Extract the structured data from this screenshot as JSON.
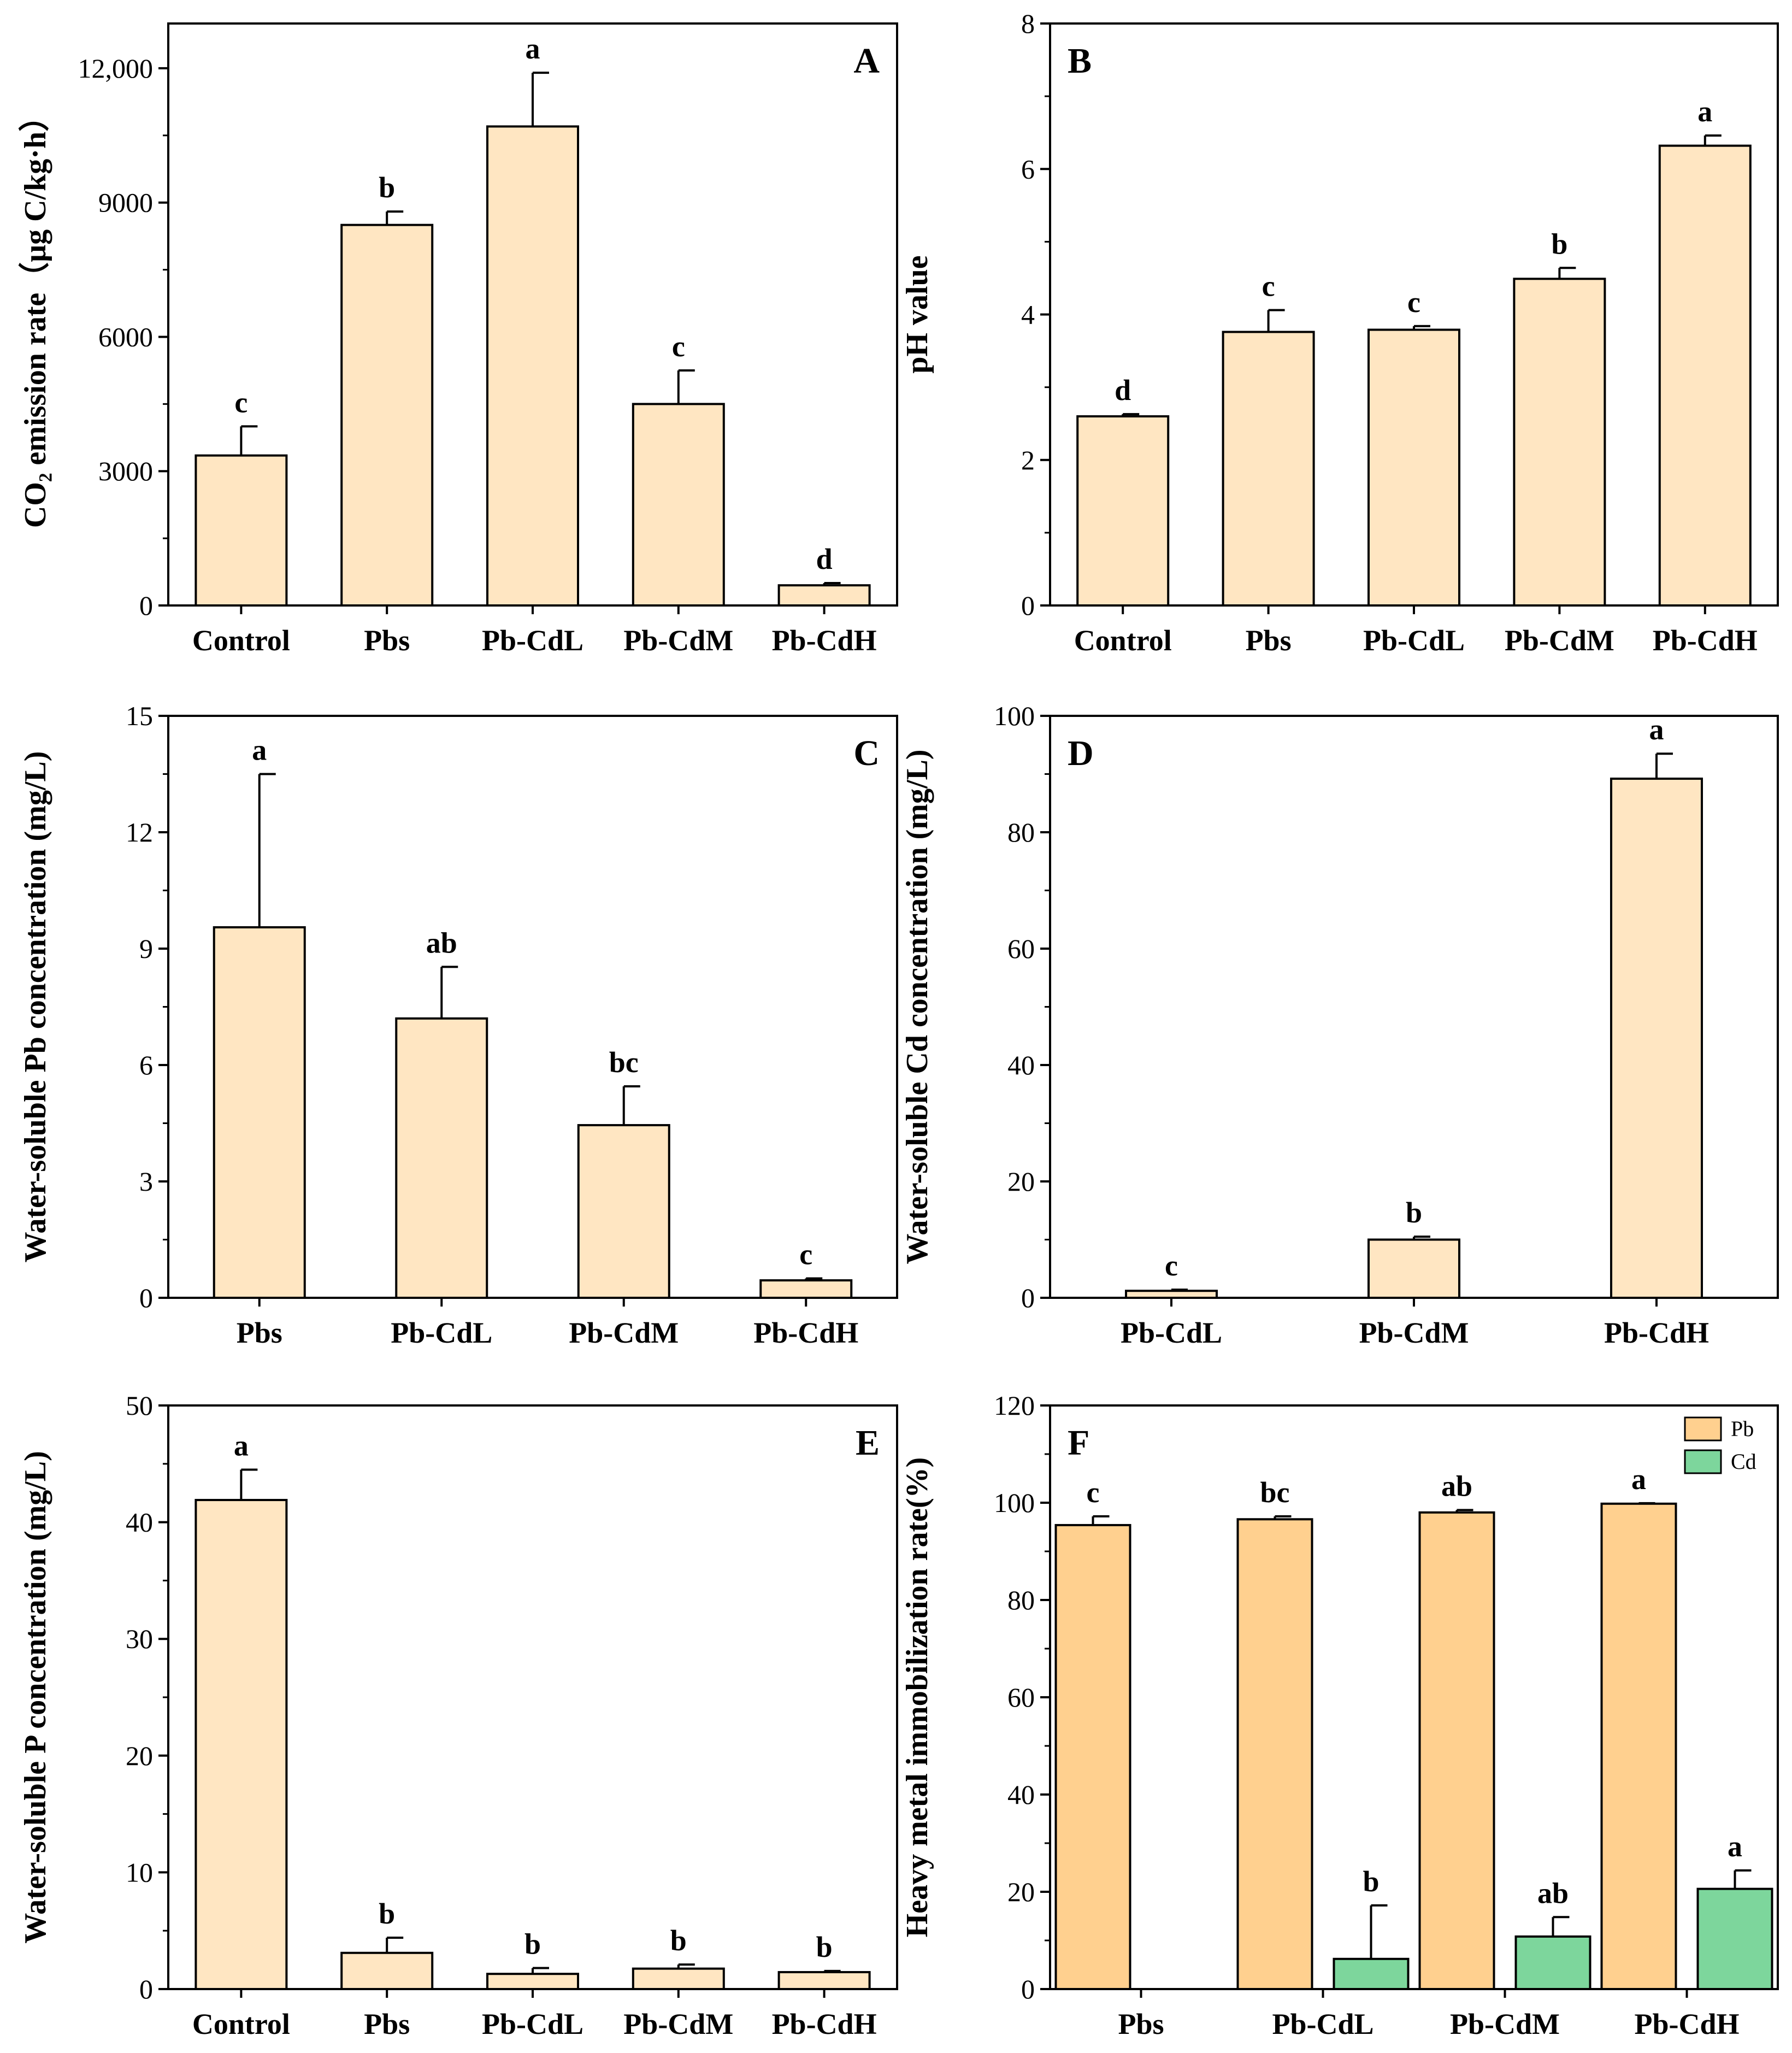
{
  "colors": {
    "bar_light": "#FFE6C2",
    "bar_pb": "#FFD08F",
    "bar_cd": "#7DD69C",
    "axis": "#000000"
  },
  "chart_data": [
    {
      "id": "A",
      "type": "bar",
      "panel_label": "A",
      "ylabel": "CO₂ emission rate（μg C/kg·h）",
      "categories": [
        "Control",
        "Pbs",
        "Pb-CdL",
        "Pb-CdM",
        "Pb-CdH"
      ],
      "ylim": [
        0,
        13000
      ],
      "yticks": [
        0,
        3000,
        6000,
        9000,
        12000
      ],
      "ytick_labels": [
        "0",
        "3000",
        "6000",
        "9000",
        "12,000"
      ],
      "series": [
        {
          "name": "",
          "color": "#FFE6C2",
          "values": [
            3350,
            8500,
            10700,
            4500,
            450
          ],
          "errors": [
            650,
            300,
            1200,
            750,
            50
          ],
          "sig": [
            "c",
            "b",
            "a",
            "c",
            "d"
          ]
        }
      ]
    },
    {
      "id": "B",
      "type": "bar",
      "panel_label": "B",
      "ylabel": "pH value",
      "categories": [
        "Control",
        "Pbs",
        "Pb-CdL",
        "Pb-CdM",
        "Pb-CdH"
      ],
      "ylim": [
        0,
        8
      ],
      "yticks": [
        0,
        2,
        4,
        6,
        8
      ],
      "ytick_labels": [
        "0",
        "2",
        "4",
        "6",
        "8"
      ],
      "series": [
        {
          "name": "",
          "color": "#FFE6C2",
          "values": [
            2.6,
            3.76,
            3.79,
            4.49,
            6.32
          ],
          "errors": [
            0.03,
            0.3,
            0.05,
            0.15,
            0.14
          ],
          "sig": [
            "d",
            "c",
            "c",
            "b",
            "a"
          ]
        }
      ]
    },
    {
      "id": "C",
      "type": "bar",
      "panel_label": "C",
      "ylabel": "Water-soluble Pb concentration (mg/L)",
      "categories": [
        "Pbs",
        "Pb-CdL",
        "Pb-CdM",
        "Pb-CdH"
      ],
      "ylim": [
        0,
        15
      ],
      "yticks": [
        0,
        3,
        6,
        9,
        12,
        15
      ],
      "ytick_labels": [
        "0",
        "3",
        "6",
        "9",
        "12",
        "15"
      ],
      "series": [
        {
          "name": "",
          "color": "#FFE6C2",
          "values": [
            9.55,
            7.2,
            4.45,
            0.45
          ],
          "errors": [
            3.95,
            1.33,
            1.0,
            0.05
          ],
          "sig": [
            "a",
            "ab",
            "bc",
            "c"
          ]
        }
      ]
    },
    {
      "id": "D",
      "type": "bar",
      "panel_label": "D",
      "ylabel": "Water-soluble Cd concentration (mg/L)",
      "categories": [
        "Pb-CdL",
        "Pb-CdM",
        "Pb-CdH"
      ],
      "ylim": [
        0,
        100
      ],
      "yticks": [
        0,
        20,
        40,
        60,
        80,
        100
      ],
      "ytick_labels": [
        "0",
        "20",
        "40",
        "60",
        "80",
        "100"
      ],
      "series": [
        {
          "name": "",
          "color": "#FFE6C2",
          "values": [
            1.2,
            10.0,
            89.2
          ],
          "errors": [
            0.2,
            0.5,
            4.3
          ],
          "sig": [
            "c",
            "b",
            "a"
          ]
        }
      ]
    },
    {
      "id": "E",
      "type": "bar",
      "panel_label": "E",
      "ylabel": "Water-soluble P concentration (mg/L)",
      "categories": [
        "Control",
        "Pbs",
        "Pb-CdL",
        "Pb-CdM",
        "Pb-CdH"
      ],
      "ylim": [
        0,
        50
      ],
      "yticks": [
        0,
        10,
        20,
        30,
        40,
        50
      ],
      "ytick_labels": [
        "0",
        "10",
        "20",
        "30",
        "40",
        "50"
      ],
      "series": [
        {
          "name": "",
          "color": "#FFE6C2",
          "values": [
            41.9,
            3.1,
            1.3,
            1.75,
            1.45
          ],
          "errors": [
            2.6,
            1.3,
            0.5,
            0.35,
            0.1
          ],
          "sig": [
            "a",
            "b",
            "b",
            "b",
            "b"
          ]
        }
      ]
    },
    {
      "id": "F",
      "type": "bar",
      "panel_label": "F",
      "ylabel": "Heavy metal immobilization rate(%)",
      "categories": [
        "Pbs",
        "Pb-CdL",
        "Pb-CdM",
        "Pb-CdH"
      ],
      "ylim": [
        0,
        120
      ],
      "yticks": [
        0,
        20,
        40,
        60,
        80,
        100,
        120
      ],
      "ytick_labels": [
        "0",
        "20",
        "40",
        "60",
        "80",
        "100",
        "120"
      ],
      "legend_position": "top-right",
      "series": [
        {
          "name": "Pb",
          "color": "#FFD08F",
          "values": [
            95.4,
            96.6,
            98.0,
            99.8
          ],
          "errors": [
            1.8,
            0.6,
            0.5,
            0.1
          ],
          "sig": [
            "c",
            "bc",
            "ab",
            "a"
          ]
        },
        {
          "name": "Cd",
          "color": "#7DD69C",
          "values": [
            null,
            6.2,
            10.8,
            20.6
          ],
          "errors": [
            null,
            11.0,
            4.0,
            3.8
          ],
          "sig": [
            null,
            "b",
            "ab",
            "a"
          ]
        }
      ]
    }
  ]
}
